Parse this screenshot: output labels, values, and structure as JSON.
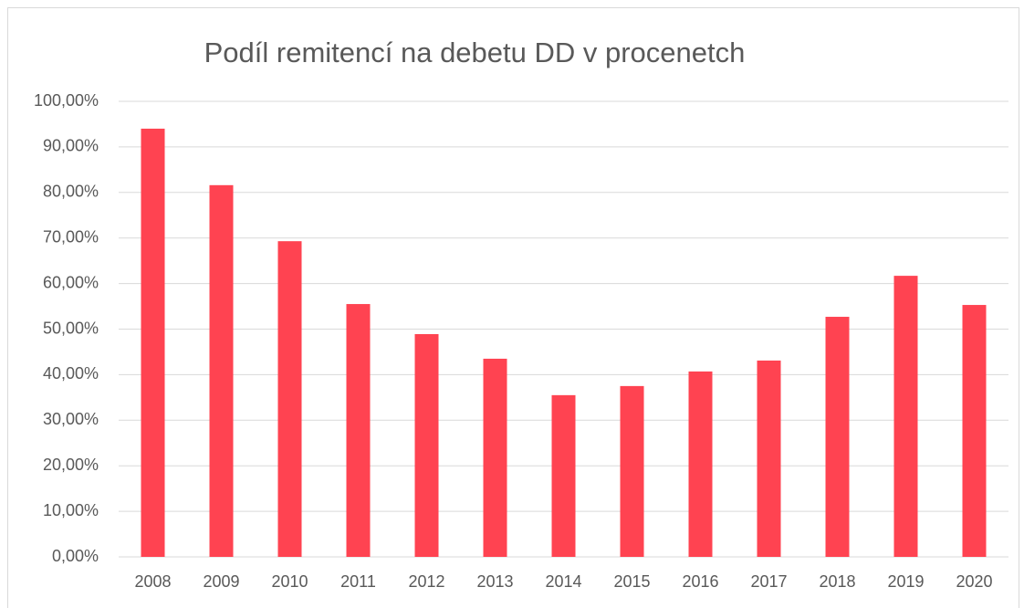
{
  "chart_data": {
    "type": "bar",
    "title": "Podíl remitencí na debetu DD v procenetch",
    "categories": [
      "2008",
      "2009",
      "2010",
      "2011",
      "2012",
      "2013",
      "2014",
      "2015",
      "2016",
      "2017",
      "2018",
      "2019",
      "2020"
    ],
    "values": [
      94.0,
      81.6,
      69.3,
      55.5,
      48.9,
      43.5,
      35.5,
      37.5,
      40.7,
      43.1,
      52.7,
      61.7,
      55.3
    ],
    "color": "#ff4351",
    "ylim": [
      0,
      100
    ],
    "yticks": [
      {
        "value": 0,
        "label": "0,00%"
      },
      {
        "value": 10,
        "label": "10,00%"
      },
      {
        "value": 20,
        "label": "20,00%"
      },
      {
        "value": 30,
        "label": "30,00%"
      },
      {
        "value": 40,
        "label": "40,00%"
      },
      {
        "value": 50,
        "label": "50,00%"
      },
      {
        "value": 60,
        "label": "60,00%"
      },
      {
        "value": 70,
        "label": "70,00%"
      },
      {
        "value": 80,
        "label": "80,00%"
      },
      {
        "value": 90,
        "label": "90,00%"
      },
      {
        "value": 100,
        "label": "100,00%"
      }
    ],
    "grid": true
  }
}
